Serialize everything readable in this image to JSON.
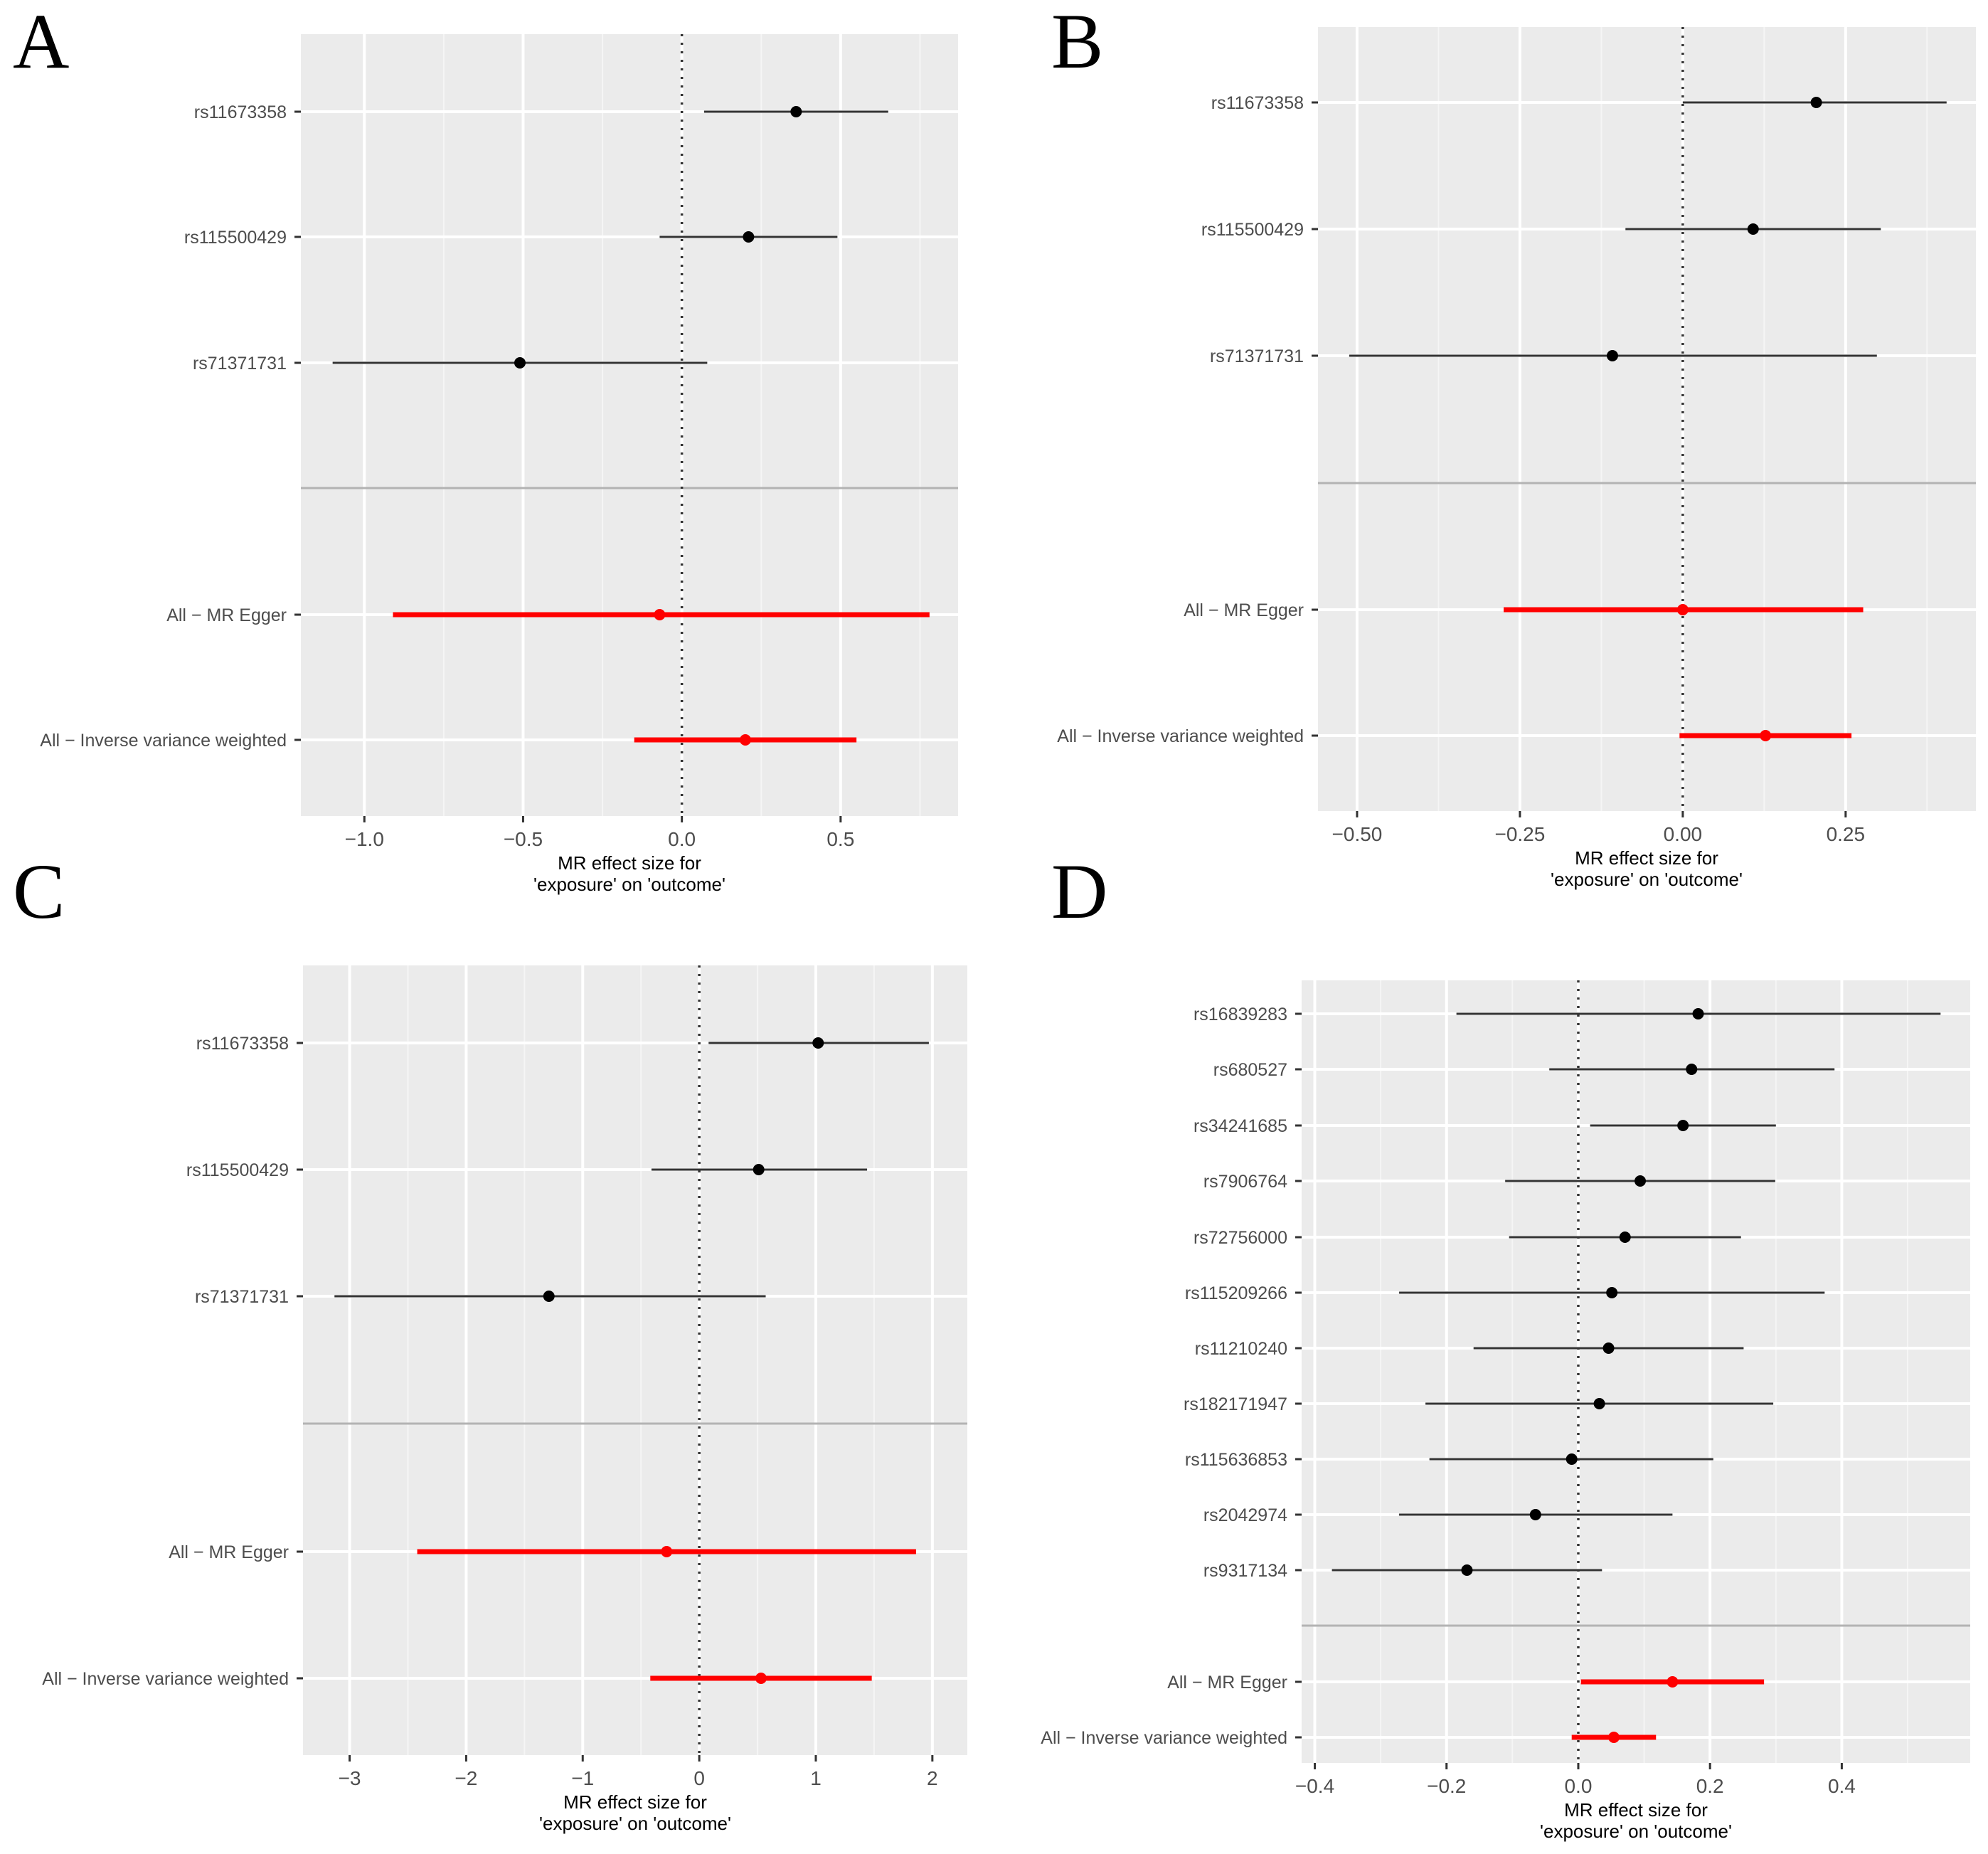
{
  "figure": {
    "x_axis_title_line1": "MR effect size for",
    "x_axis_title_line2": "'exposure' on 'outcome'"
  },
  "colors": {
    "snp_point": "#000000",
    "snp_line": "#333333",
    "summary": "#ff0000",
    "panel_bg": "#ebebeb"
  },
  "chart_data": [
    {
      "panel": "A",
      "type": "forest",
      "xlim": [
        -1.2,
        0.87
      ],
      "xticks": [
        -1.0,
        -0.5,
        0.0,
        0.5
      ],
      "xtick_labels": [
        "-1.0",
        "-0.5",
        "0.0",
        "0.5"
      ],
      "snps": [
        {
          "label": "rs11673358",
          "est": 0.36,
          "lo": 0.07,
          "hi": 0.65
        },
        {
          "label": "rs115500429",
          "est": 0.21,
          "lo": -0.07,
          "hi": 0.49
        },
        {
          "label": "rs71371731",
          "est": -0.51,
          "lo": -1.1,
          "hi": 0.08
        }
      ],
      "summary": [
        {
          "label": "All - MR Egger",
          "est": -0.07,
          "lo": -0.91,
          "hi": 0.78
        },
        {
          "label": "All - Inverse variance weighted",
          "est": 0.2,
          "lo": -0.15,
          "hi": 0.55
        }
      ]
    },
    {
      "panel": "B",
      "type": "forest",
      "xlim": [
        -0.56,
        0.45
      ],
      "xticks": [
        -0.5,
        -0.25,
        0.0,
        0.25
      ],
      "xtick_labels": [
        "-0.50",
        "-0.25",
        "0.00",
        "0.25"
      ],
      "snps": [
        {
          "label": "rs11673358",
          "est": 0.205,
          "lo": 0.0,
          "hi": 0.405
        },
        {
          "label": "rs115500429",
          "est": 0.108,
          "lo": -0.088,
          "hi": 0.304
        },
        {
          "label": "rs71371731",
          "est": -0.108,
          "lo": -0.512,
          "hi": 0.298
        }
      ],
      "summary": [
        {
          "label": "All - MR Egger",
          "est": 0.0,
          "lo": -0.275,
          "hi": 0.277
        },
        {
          "label": "All - Inverse variance weighted",
          "est": 0.127,
          "lo": -0.005,
          "hi": 0.259
        }
      ]
    },
    {
      "panel": "C",
      "type": "forest",
      "xlim": [
        -3.4,
        2.3
      ],
      "xticks": [
        -3,
        -2,
        -1,
        0,
        1,
        2
      ],
      "xtick_labels": [
        "-3",
        "-2",
        "-1",
        "0",
        "1",
        "2"
      ],
      "snps": [
        {
          "label": "rs11673358",
          "est": 1.02,
          "lo": 0.08,
          "hi": 1.97
        },
        {
          "label": "rs115500429",
          "est": 0.51,
          "lo": -0.41,
          "hi": 1.44
        },
        {
          "label": "rs71371731",
          "est": -1.29,
          "lo": -3.13,
          "hi": 0.57
        }
      ],
      "summary": [
        {
          "label": "All - MR Egger",
          "est": -0.28,
          "lo": -2.42,
          "hi": 1.86
        },
        {
          "label": "All - Inverse variance weighted",
          "est": 0.53,
          "lo": -0.42,
          "hi": 1.48
        }
      ]
    },
    {
      "panel": "D",
      "type": "forest",
      "xlim": [
        -0.42,
        0.595
      ],
      "xticks": [
        -0.4,
        -0.2,
        0.0,
        0.2,
        0.4
      ],
      "xtick_labels": [
        "-0.4",
        "-0.2",
        "0.0",
        "0.2",
        "0.4"
      ],
      "snps": [
        {
          "label": "rs16839283",
          "est": 0.182,
          "lo": -0.185,
          "hi": 0.55
        },
        {
          "label": "rs680527",
          "est": 0.172,
          "lo": -0.044,
          "hi": 0.389
        },
        {
          "label": "rs34241685",
          "est": 0.159,
          "lo": 0.018,
          "hi": 0.3
        },
        {
          "label": "rs7906764",
          "est": 0.094,
          "lo": -0.111,
          "hi": 0.299
        },
        {
          "label": "rs72756000",
          "est": 0.071,
          "lo": -0.105,
          "hi": 0.247
        },
        {
          "label": "rs115209266",
          "est": 0.051,
          "lo": -0.272,
          "hi": 0.374
        },
        {
          "label": "rs11210240",
          "est": 0.046,
          "lo": -0.159,
          "hi": 0.251
        },
        {
          "label": "rs182171947",
          "est": 0.032,
          "lo": -0.232,
          "hi": 0.296
        },
        {
          "label": "rs115636853",
          "est": -0.01,
          "lo": -0.226,
          "hi": 0.205
        },
        {
          "label": "rs2042974",
          "est": -0.065,
          "lo": -0.272,
          "hi": 0.143
        },
        {
          "label": "rs9317134",
          "est": -0.169,
          "lo": -0.374,
          "hi": 0.036
        }
      ],
      "summary": [
        {
          "label": "All - MR Egger",
          "est": 0.143,
          "lo": 0.004,
          "hi": 0.282
        },
        {
          "label": "All - Inverse variance weighted",
          "est": 0.054,
          "lo": -0.01,
          "hi": 0.118
        }
      ]
    }
  ]
}
